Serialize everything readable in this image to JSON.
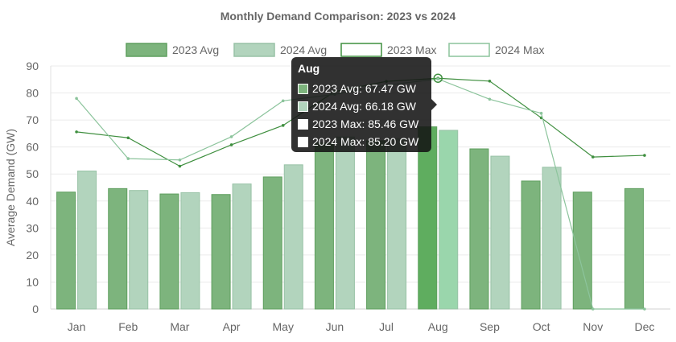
{
  "chart_data": {
    "type": "bar",
    "title": "Monthly Demand Comparison: 2023 vs 2024",
    "ylabel": "Average Demand (GW)",
    "xlabel": "",
    "ylim": [
      0,
      90
    ],
    "yticks": [
      0,
      10,
      20,
      30,
      40,
      50,
      60,
      70,
      80,
      90
    ],
    "grid": "horizontal",
    "legend_position": "top",
    "categories": [
      "Jan",
      "Feb",
      "Mar",
      "Apr",
      "May",
      "Jun",
      "Jul",
      "Aug",
      "Sep",
      "Oct",
      "Nov",
      "Dec"
    ],
    "series": [
      {
        "name": "2023 Avg",
        "kind": "bar",
        "color": "#7db47d",
        "border": "#5f9f5f",
        "values": [
          43.3,
          44.6,
          42.6,
          42.4,
          48.9,
          61.5,
          62.3,
          67.47,
          59.3,
          47.4,
          43.3,
          44.6
        ]
      },
      {
        "name": "2024 Avg",
        "kind": "bar",
        "color": "#b2d4bd",
        "border": "#98c2a6",
        "values": [
          51.1,
          43.9,
          43.1,
          46.3,
          53.4,
          63.7,
          63.0,
          66.18,
          56.6,
          52.5,
          0,
          0
        ]
      },
      {
        "name": "2023 Max",
        "kind": "line",
        "color": "#3f8f3f",
        "values": [
          65.6,
          63.4,
          52.9,
          60.8,
          68.0,
          80.5,
          84.3,
          85.46,
          84.4,
          70.8,
          56.3,
          56.9
        ]
      },
      {
        "name": "2024 Max",
        "kind": "line",
        "color": "#8cc49c",
        "values": [
          78.0,
          55.7,
          55.2,
          63.8,
          77.1,
          79.5,
          82.9,
          85.2,
          77.7,
          72.5,
          0,
          0
        ]
      }
    ]
  },
  "tooltip": {
    "title": "Aug",
    "rows": [
      {
        "label": "2023 Avg: 67.47 GW",
        "color": "#7db47d"
      },
      {
        "label": "2024 Avg: 66.18 GW",
        "color": "#b2d4bd"
      },
      {
        "label": "2023 Max: 85.46 GW",
        "color": "#ffffff"
      },
      {
        "label": "2024 Max: 85.20 GW",
        "color": "#ffffff"
      }
    ]
  }
}
